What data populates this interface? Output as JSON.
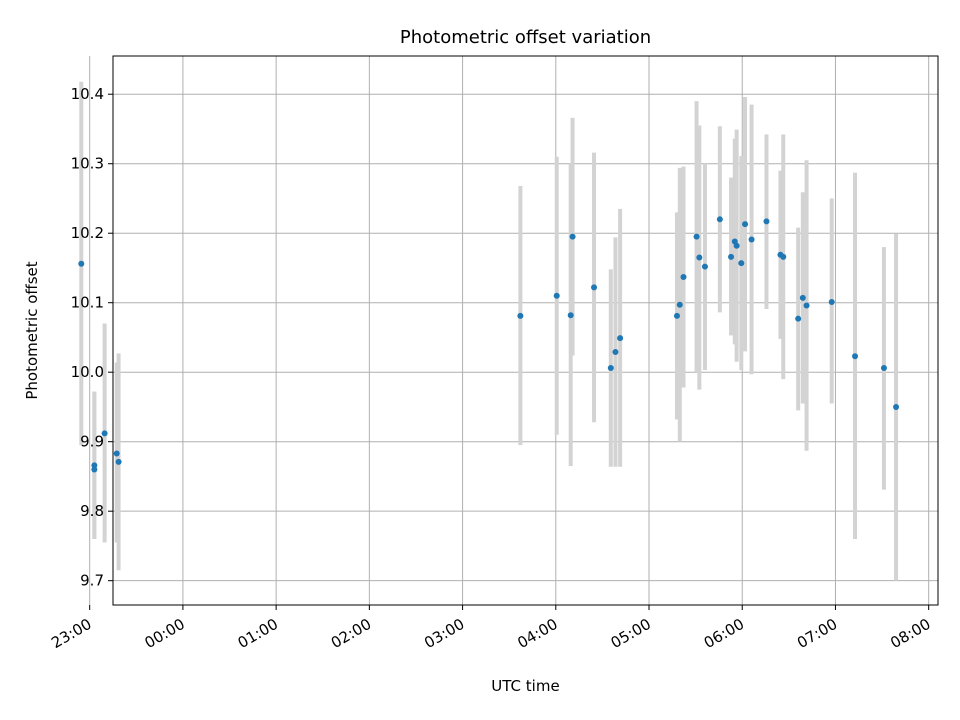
{
  "chart_data": {
    "type": "scatter",
    "title": "Photometric offset variation",
    "xlabel": "UTC time",
    "ylabel": "Photometric offset",
    "x_unit": "hours relative to 00:00 UTC (negative = previous day)",
    "xlim": [
      -0.75,
      8.1
    ],
    "ylim": [
      9.665,
      10.455
    ],
    "xticks": [
      {
        "value": -1,
        "label": "23:00"
      },
      {
        "value": 0,
        "label": "00:00"
      },
      {
        "value": 1,
        "label": "01:00"
      },
      {
        "value": 2,
        "label": "02:00"
      },
      {
        "value": 3,
        "label": "03:00"
      },
      {
        "value": 4,
        "label": "04:00"
      },
      {
        "value": 5,
        "label": "05:00"
      },
      {
        "value": 6,
        "label": "06:00"
      },
      {
        "value": 7,
        "label": "07:00"
      },
      {
        "value": 8,
        "label": "08:00"
      }
    ],
    "yticks": [
      {
        "value": 9.7,
        "label": "9.7"
      },
      {
        "value": 9.8,
        "label": "9.8"
      },
      {
        "value": 9.9,
        "label": "9.9"
      },
      {
        "value": 10.0,
        "label": "10.0"
      },
      {
        "value": 10.1,
        "label": "10.1"
      },
      {
        "value": 10.2,
        "label": "10.2"
      },
      {
        "value": 10.3,
        "label": "10.3"
      },
      {
        "value": 10.4,
        "label": "10.4"
      }
    ],
    "grid": true,
    "marker_color": "#1f77b4",
    "errorbar_color": "#d3d3d3",
    "points": [
      {
        "x": -1.09,
        "y": 10.156,
        "lo": 9.895,
        "hi": 10.418
      },
      {
        "x": -0.95,
        "y": 9.866,
        "lo": 9.76,
        "hi": 9.972
      },
      {
        "x": -0.95,
        "y": 9.86,
        "lo": 9.76,
        "hi": 9.972
      },
      {
        "x": -0.84,
        "y": 9.912,
        "lo": 9.755,
        "hi": 10.07
      },
      {
        "x": -0.71,
        "y": 9.883,
        "lo": 9.755,
        "hi": 10.014
      },
      {
        "x": -0.69,
        "y": 9.871,
        "lo": 9.715,
        "hi": 10.027
      },
      {
        "x": 3.62,
        "y": 10.081,
        "lo": 9.895,
        "hi": 10.268
      },
      {
        "x": 4.01,
        "y": 10.11,
        "lo": 9.91,
        "hi": 10.31
      },
      {
        "x": 4.16,
        "y": 10.082,
        "lo": 9.865,
        "hi": 10.3
      },
      {
        "x": 4.18,
        "y": 10.195,
        "lo": 10.024,
        "hi": 10.366
      },
      {
        "x": 4.41,
        "y": 10.122,
        "lo": 9.928,
        "hi": 10.316
      },
      {
        "x": 4.59,
        "y": 10.006,
        "lo": 9.864,
        "hi": 10.148
      },
      {
        "x": 4.64,
        "y": 10.029,
        "lo": 9.864,
        "hi": 10.194
      },
      {
        "x": 4.69,
        "y": 10.049,
        "lo": 9.864,
        "hi": 10.235
      },
      {
        "x": 5.3,
        "y": 10.081,
        "lo": 9.932,
        "hi": 10.23
      },
      {
        "x": 5.33,
        "y": 10.097,
        "lo": 9.9,
        "hi": 10.294
      },
      {
        "x": 5.37,
        "y": 10.137,
        "lo": 9.978,
        "hi": 10.296
      },
      {
        "x": 5.51,
        "y": 10.195,
        "lo": 10.0,
        "hi": 10.39
      },
      {
        "x": 5.54,
        "y": 10.165,
        "lo": 9.975,
        "hi": 10.355
      },
      {
        "x": 5.6,
        "y": 10.152,
        "lo": 10.003,
        "hi": 10.3
      },
      {
        "x": 5.76,
        "y": 10.22,
        "lo": 10.086,
        "hi": 10.354
      },
      {
        "x": 5.88,
        "y": 10.166,
        "lo": 10.053,
        "hi": 10.28
      },
      {
        "x": 5.92,
        "y": 10.188,
        "lo": 10.04,
        "hi": 10.336
      },
      {
        "x": 5.94,
        "y": 10.182,
        "lo": 10.015,
        "hi": 10.349
      },
      {
        "x": 5.99,
        "y": 10.157,
        "lo": 10.003,
        "hi": 10.311
      },
      {
        "x": 6.03,
        "y": 10.213,
        "lo": 10.03,
        "hi": 10.396
      },
      {
        "x": 6.1,
        "y": 10.191,
        "lo": 9.997,
        "hi": 10.385
      },
      {
        "x": 6.26,
        "y": 10.217,
        "lo": 10.091,
        "hi": 10.342
      },
      {
        "x": 6.41,
        "y": 10.169,
        "lo": 10.048,
        "hi": 10.29
      },
      {
        "x": 6.44,
        "y": 10.166,
        "lo": 9.99,
        "hi": 10.342
      },
      {
        "x": 6.6,
        "y": 10.077,
        "lo": 9.945,
        "hi": 10.208
      },
      {
        "x": 6.65,
        "y": 10.107,
        "lo": 9.955,
        "hi": 10.259
      },
      {
        "x": 6.69,
        "y": 10.096,
        "lo": 9.887,
        "hi": 10.305
      },
      {
        "x": 6.96,
        "y": 10.101,
        "lo": 9.955,
        "hi": 10.25
      },
      {
        "x": 7.21,
        "y": 10.023,
        "lo": 9.76,
        "hi": 10.287
      },
      {
        "x": 7.52,
        "y": 10.006,
        "lo": 9.831,
        "hi": 10.18
      },
      {
        "x": 7.65,
        "y": 9.95,
        "lo": 9.7,
        "hi": 10.199
      }
    ]
  }
}
